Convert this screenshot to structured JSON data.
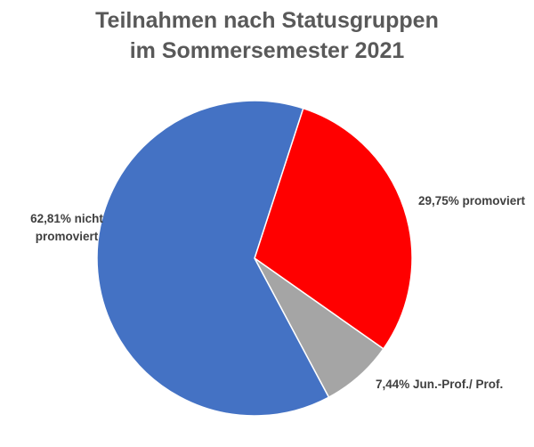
{
  "chart_data": {
    "type": "pie",
    "title": [
      "Teilnahmen nach Statusgruppen",
      "im Sommersemester 2021"
    ],
    "slices": [
      {
        "label_lines": [
          "29,75% promoviert"
        ],
        "value": 29.75,
        "color": "#FF0000"
      },
      {
        "label_lines": [
          "7,44% Jun.-Prof./ Prof."
        ],
        "value": 7.44,
        "color": "#A5A5A5"
      },
      {
        "label_lines": [
          "62,81% nicht",
          "promoviert"
        ],
        "value": 62.81,
        "color": "#4472C4"
      }
    ],
    "start_angle_deg": 18,
    "direction": "clockwise",
    "legend": "none"
  }
}
